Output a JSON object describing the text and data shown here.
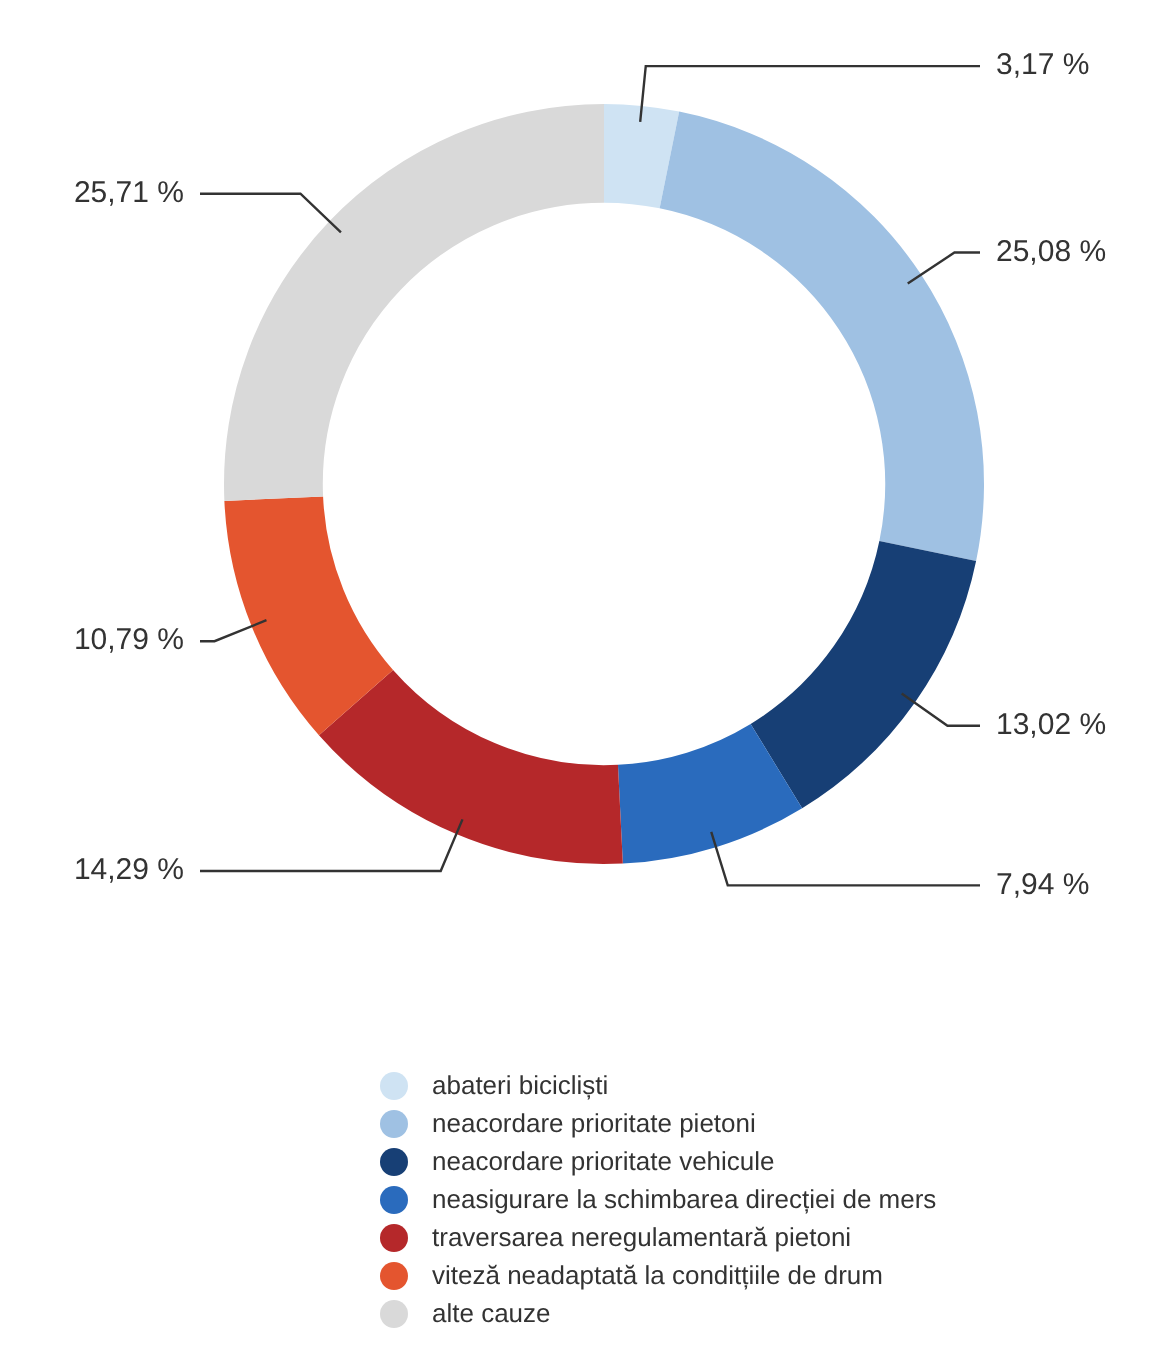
{
  "chart_data": {
    "type": "donut",
    "categories": [
      "abateri bicicliști",
      "neacordare prioritate pietoni",
      "neacordare prioritate vehicule",
      "neasigurare la schimbarea direcției de mers",
      "traversarea neregulamentară pietoni",
      "viteză neadaptată la conditțiile de drum",
      "alte cauze"
    ],
    "values": [
      3.17,
      25.08,
      13.02,
      7.94,
      14.29,
      10.79,
      25.71
    ],
    "value_labels": [
      "3,17 %",
      "25,08 %",
      "13,02 %",
      "7,94 %",
      "14,29 %",
      "10,79 %",
      "25,71 %"
    ],
    "colors": [
      "#cfe3f3",
      "#9fc1e3",
      "#173f75",
      "#2a6bbd",
      "#b5282a",
      "#e4552f",
      "#d9d9d9"
    ],
    "legend": "bottom"
  }
}
